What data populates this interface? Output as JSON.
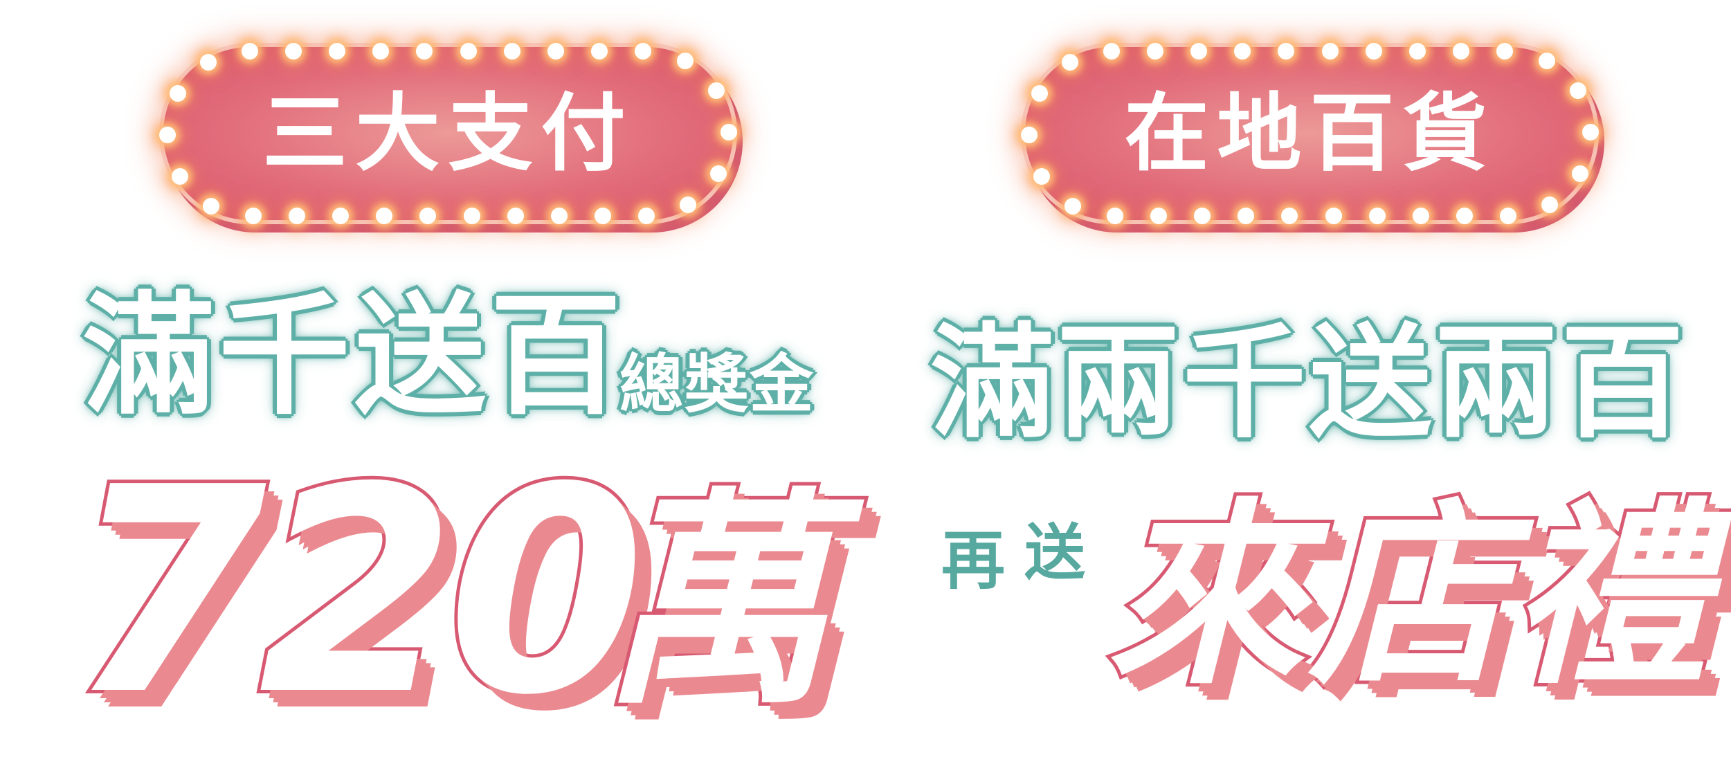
{
  "left": {
    "sign": "三大支付",
    "headline": "滿千送百",
    "sub": "總獎金",
    "amount": "720",
    "amount_unit": "萬"
  },
  "right": {
    "sign": "在地百貨",
    "headline": "滿兩千送兩百",
    "prefix_again": "再",
    "prefix_send": "送",
    "gift": "來店禮"
  },
  "colors": {
    "sign_pink": "#e26d7b",
    "teal": "#5fb0a8",
    "pink_outline": "#d85a72",
    "pink_shadow": "#ea8a90"
  }
}
